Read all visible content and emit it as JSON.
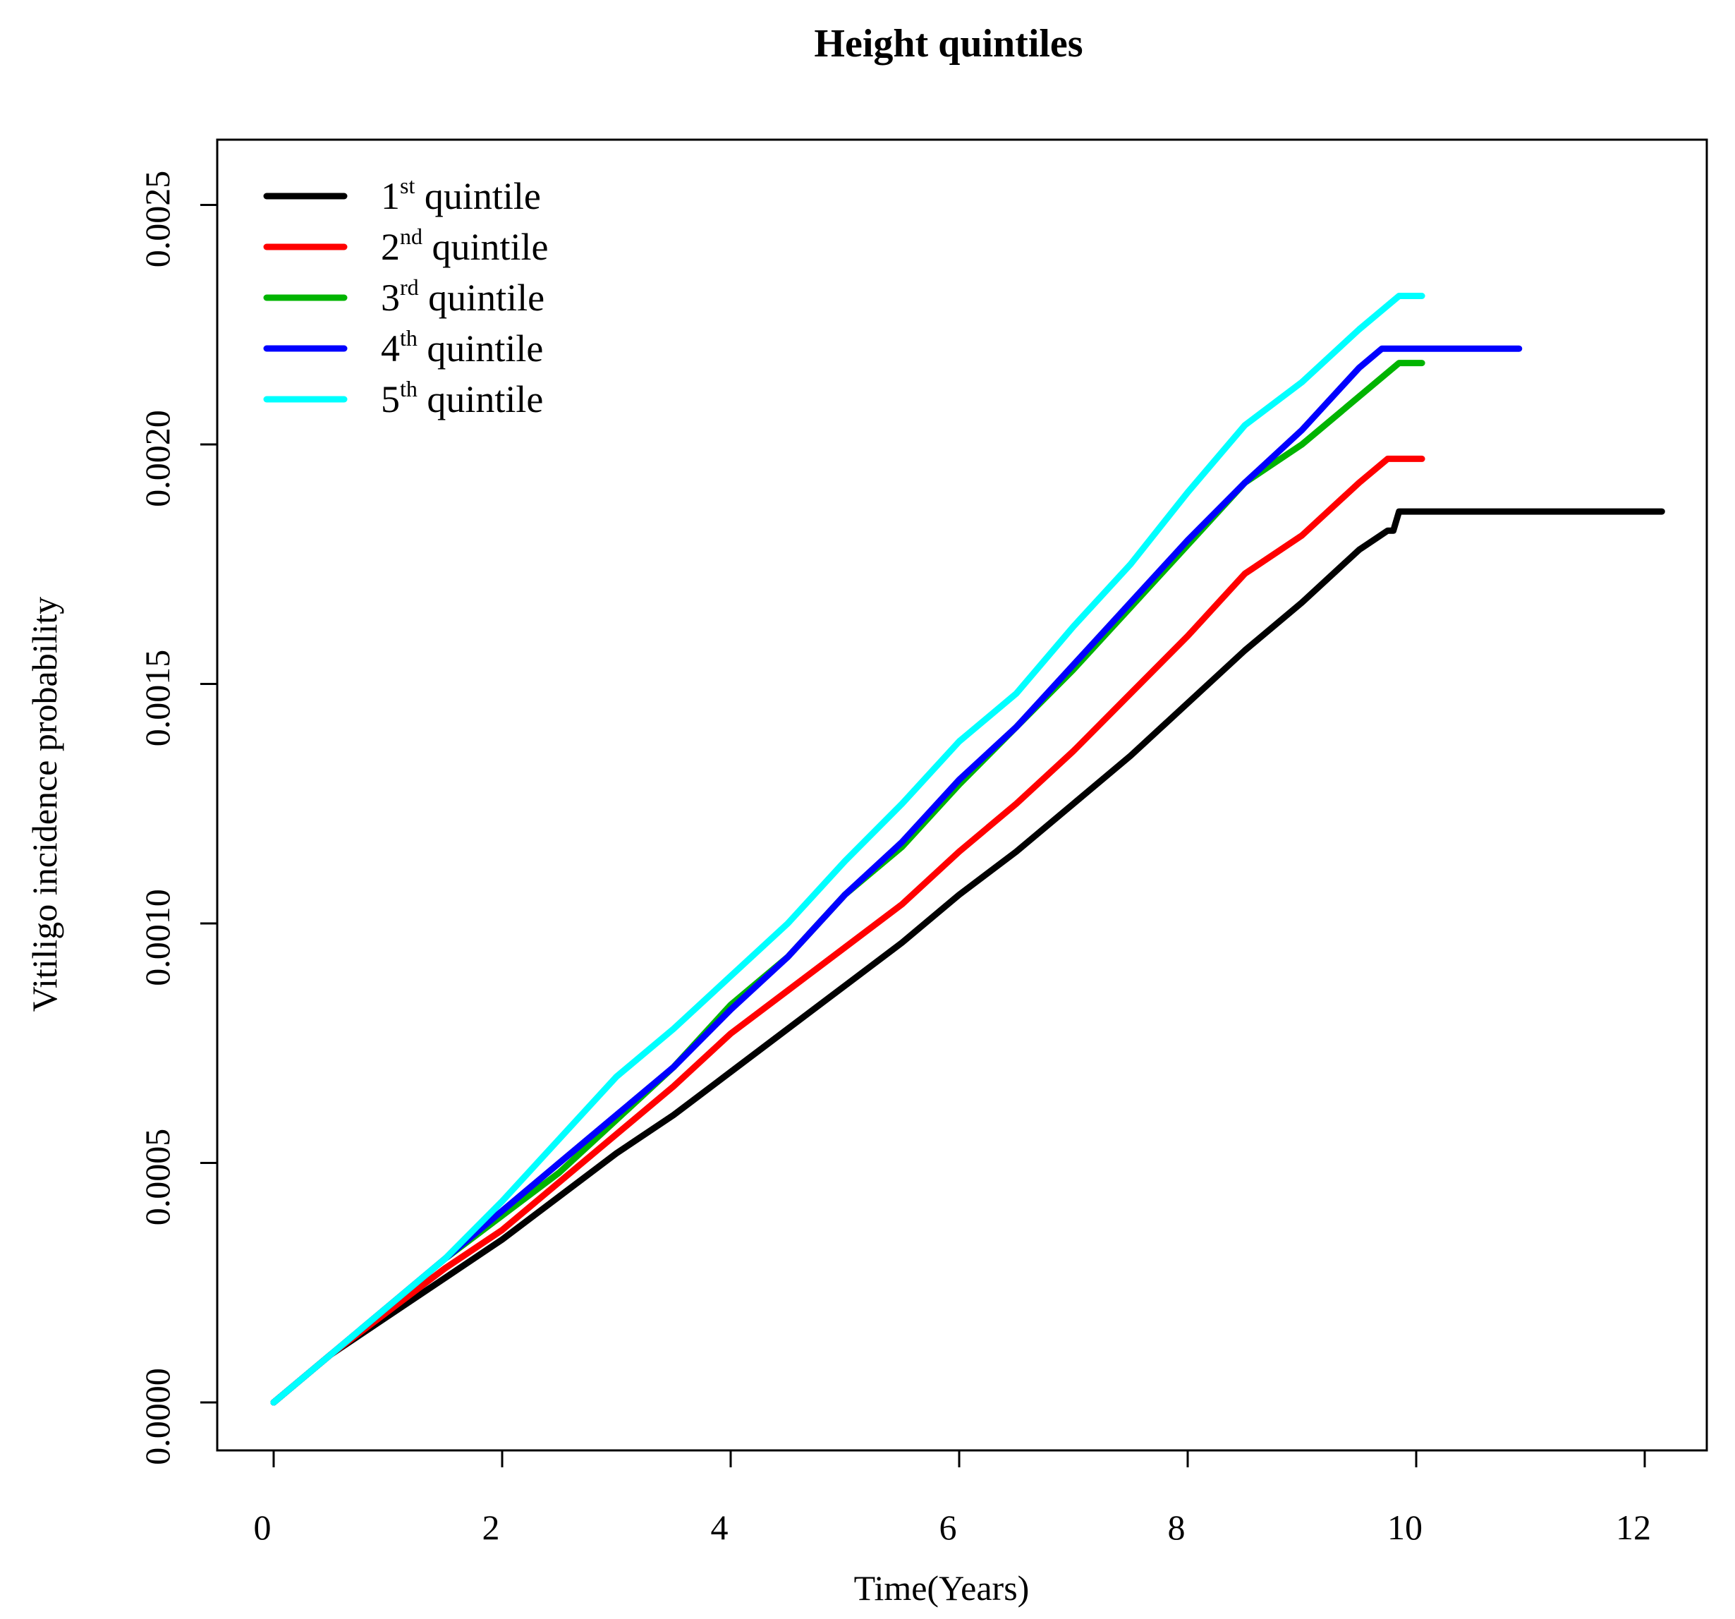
{
  "chart_data": {
    "type": "line",
    "title": "Height quintiles",
    "xlabel": "Time(Years)",
    "ylabel": "Vitiligo incidence probability",
    "xlim": [
      0,
      12.5
    ],
    "ylim": [
      0,
      0.0026
    ],
    "x_ticks": [
      0,
      2,
      4,
      6,
      8,
      10,
      12
    ],
    "x_tick_labels": [
      "0",
      "2",
      "4",
      "6",
      "8",
      "10",
      "12"
    ],
    "y_ticks": [
      0,
      0.0005,
      0.001,
      0.0015,
      0.002,
      0.0025
    ],
    "y_tick_labels": [
      "0.0000",
      "0.0005",
      "0.0010",
      "0.0015",
      "0.0020",
      "0.0025"
    ],
    "legend_position": "top-left",
    "series": [
      {
        "name": "1st quintile",
        "num": "1",
        "sup": "st",
        "rest": " quintile",
        "color": "#000000",
        "x": [
          0,
          0.5,
          1,
          1.5,
          2,
          2.5,
          3,
          3.5,
          4,
          4.5,
          5,
          5.5,
          6,
          6.5,
          7,
          7.5,
          8,
          8.5,
          9,
          9.5,
          9.75,
          9.8,
          9.85,
          12.15
        ],
        "y": [
          0,
          0.0001,
          0.00018,
          0.00026,
          0.00034,
          0.00043,
          0.00052,
          0.0006,
          0.00069,
          0.00078,
          0.00087,
          0.00096,
          0.00106,
          0.00115,
          0.00125,
          0.00135,
          0.00146,
          0.00157,
          0.00167,
          0.00178,
          0.00182,
          0.00182,
          0.00186,
          0.00186
        ]
      },
      {
        "name": "2nd quintile",
        "num": "2",
        "sup": "nd",
        "rest": " quintile",
        "color": "#ff0000",
        "x": [
          0,
          0.5,
          1,
          1.5,
          2,
          2.5,
          3,
          3.5,
          4,
          4.5,
          5,
          5.5,
          6,
          6.5,
          7,
          7.5,
          8,
          8.5,
          9,
          9.5,
          9.75,
          10.05
        ],
        "y": [
          0,
          0.0001,
          0.00019,
          0.00028,
          0.00036,
          0.00046,
          0.00056,
          0.00066,
          0.00077,
          0.00086,
          0.00095,
          0.00104,
          0.00115,
          0.00125,
          0.00136,
          0.00148,
          0.0016,
          0.00173,
          0.00181,
          0.00192,
          0.00197,
          0.00197
        ]
      },
      {
        "name": "3rd quintile",
        "num": "3",
        "sup": "rd",
        "rest": " quintile",
        "color": "#00b400",
        "x": [
          0,
          0.5,
          1,
          1.5,
          2,
          2.5,
          3,
          3.5,
          4,
          4.5,
          5,
          5.5,
          6,
          6.5,
          7,
          7.5,
          8,
          8.5,
          9,
          9.5,
          9.85,
          10.05
        ],
        "y": [
          0,
          0.0001,
          0.0002,
          0.0003,
          0.00039,
          0.00048,
          0.00059,
          0.0007,
          0.00083,
          0.00093,
          0.00106,
          0.00116,
          0.00129,
          0.00141,
          0.00153,
          0.00166,
          0.00179,
          0.00192,
          0.002,
          0.0021,
          0.00217,
          0.00217
        ]
      },
      {
        "name": "4th quintile",
        "num": "4",
        "sup": "th",
        "rest": " quintile",
        "color": "#0000ff",
        "x": [
          0,
          0.5,
          1,
          1.5,
          2,
          2.5,
          3,
          3.5,
          4,
          4.5,
          5,
          5.5,
          6,
          6.5,
          7,
          7.5,
          8,
          8.5,
          9,
          9.5,
          9.7,
          10.9
        ],
        "y": [
          0,
          0.0001,
          0.0002,
          0.0003,
          0.0004,
          0.0005,
          0.0006,
          0.0007,
          0.00082,
          0.00093,
          0.00106,
          0.00117,
          0.0013,
          0.00141,
          0.00154,
          0.00167,
          0.0018,
          0.00192,
          0.00203,
          0.00216,
          0.0022,
          0.0022
        ]
      },
      {
        "name": "5th quintile",
        "num": "5",
        "sup": "th",
        "rest": " quintile",
        "color": "#00ffff",
        "x": [
          0,
          0.5,
          1,
          1.5,
          2,
          2.5,
          3,
          3.5,
          4,
          4.5,
          5,
          5.5,
          6,
          6.5,
          7,
          7.5,
          8,
          8.5,
          9,
          9.5,
          9.85,
          10.05
        ],
        "y": [
          0,
          0.0001,
          0.0002,
          0.0003,
          0.00042,
          0.00055,
          0.00068,
          0.00078,
          0.00089,
          0.001,
          0.00113,
          0.00125,
          0.00138,
          0.00148,
          0.00162,
          0.00175,
          0.0019,
          0.00204,
          0.00213,
          0.00224,
          0.00231,
          0.00231
        ]
      }
    ]
  }
}
